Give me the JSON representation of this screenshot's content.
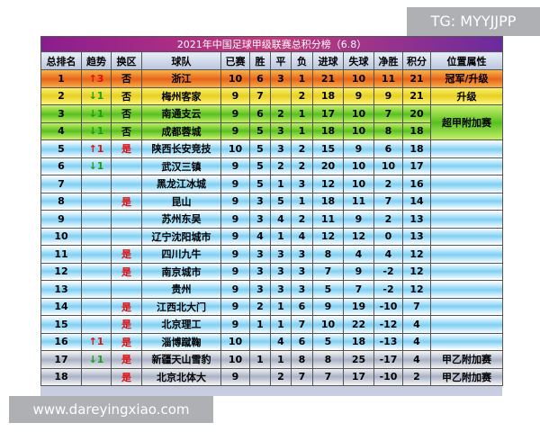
{
  "watermark_top": "TG: MYYJJPP",
  "watermark_bottom": "www.dareyingxiao.com",
  "table": {
    "title": "2021年中国足球甲级联赛总积分榜（6.8）",
    "header": [
      "总排名",
      "趋势",
      "换区",
      "球队",
      "已赛",
      "胜",
      "平",
      "负",
      "进球",
      "失球",
      "净胜",
      "积分",
      "位置属性"
    ],
    "rows": [
      {
        "rank": 1,
        "trend": "↑3",
        "zone": "否",
        "team": "浙江",
        "played": 10,
        "won": 6,
        "drawn": 3,
        "lost": 1,
        "gf": 21,
        "ga": 10,
        "gd": 11,
        "pts": 21,
        "position": "冠军/升级"
      },
      {
        "rank": 2,
        "trend": "↓1",
        "zone": "否",
        "team": "梅州客家",
        "played": 9,
        "won": 7,
        "lost": 2,
        "gf": 18,
        "ga": 9,
        "gd": 9,
        "pts": 21,
        "position": "升级"
      },
      {
        "rank": 3,
        "trend": "↓1",
        "zone": "否",
        "team": "南通支云",
        "played": 9,
        "won": 6,
        "drawn": 2,
        "lost": 1,
        "gf": 17,
        "ga": 10,
        "gd": 7,
        "pts": 20,
        "position": "超甲附加赛"
      },
      {
        "rank": 4,
        "trend": "↓1",
        "zone": "否",
        "team": "成都蓉城",
        "played": 9,
        "won": 5,
        "drawn": 3,
        "lost": 1,
        "gf": 18,
        "ga": 10,
        "gd": 8,
        "pts": 18
      },
      {
        "rank": 5,
        "trend": "↑1",
        "zone": "是",
        "team": "陕西长安竞技",
        "played": 10,
        "won": 5,
        "drawn": 3,
        "lost": 2,
        "gf": 15,
        "ga": 9,
        "gd": 6,
        "pts": 18
      },
      {
        "rank": 6,
        "trend": "↓1",
        "team": "武汉三镇",
        "played": 9,
        "won": 5,
        "drawn": 2,
        "lost": 2,
        "gf": 20,
        "ga": 10,
        "gd": 10,
        "pts": 17
      },
      {
        "rank": 7,
        "team": "黑龙江冰城",
        "played": 9,
        "won": 5,
        "drawn": 1,
        "lost": 3,
        "gf": 12,
        "ga": 10,
        "gd": 2,
        "pts": 16
      },
      {
        "rank": 8,
        "zone": "是",
        "team": "昆山",
        "played": 9,
        "won": 3,
        "drawn": 5,
        "lost": 1,
        "gf": 18,
        "ga": 11,
        "gd": 7,
        "pts": 14
      },
      {
        "rank": 9,
        "team": "苏州东吴",
        "played": 9,
        "won": 3,
        "drawn": 4,
        "lost": 2,
        "gf": 11,
        "ga": 9,
        "gd": 2,
        "pts": 13
      },
      {
        "rank": 10,
        "team": "辽宁沈阳城市",
        "played": 9,
        "won": 4,
        "drawn": 1,
        "lost": 4,
        "gf": 12,
        "ga": 12,
        "gd": 0,
        "pts": 13
      },
      {
        "rank": 11,
        "zone": "是",
        "team": "四川九牛",
        "played": 9,
        "won": 3,
        "drawn": 3,
        "lost": 3,
        "gf": 8,
        "ga": 4,
        "gd": 4,
        "pts": 12
      },
      {
        "rank": 12,
        "zone": "是",
        "team": "南京城市",
        "played": 9,
        "won": 3,
        "drawn": 3,
        "lost": 3,
        "gf": 7,
        "ga": 9,
        "gd": -2,
        "pts": 12
      },
      {
        "rank": 13,
        "team": "贵州",
        "played": 9,
        "won": 3,
        "drawn": 3,
        "lost": 3,
        "gf": 5,
        "ga": 7,
        "gd": -2,
        "pts": 12
      },
      {
        "rank": 14,
        "zone": "是",
        "team": "江西北大门",
        "played": 9,
        "won": 2,
        "drawn": 1,
        "lost": 6,
        "gf": 9,
        "ga": 19,
        "gd": -10,
        "pts": 7
      },
      {
        "rank": 15,
        "zone": "是",
        "team": "北京理工",
        "played": 9,
        "won": 1,
        "drawn": 1,
        "lost": 7,
        "gf": 10,
        "ga": 22,
        "gd": -12,
        "pts": 4
      },
      {
        "rank": 16,
        "trend": "↑1",
        "zone": "是",
        "team": "淄博蹴鞠",
        "played": 10,
        "drawn": 4,
        "lost": 6,
        "gf": 5,
        "ga": 18,
        "gd": -13,
        "pts": 4
      },
      {
        "rank": 17,
        "trend": "↓1",
        "zone": "是",
        "team": "新疆天山雪豹",
        "played": 10,
        "won": 1,
        "drawn": 1,
        "lost": 8,
        "gf": 8,
        "ga": 25,
        "gd": -17,
        "pts": 4,
        "position": "甲乙附加赛"
      },
      {
        "rank": 18,
        "zone": "是",
        "team": "北京北体大",
        "played": 9,
        "drawn": 2,
        "lost": 7,
        "gf": 7,
        "ga": 17,
        "gd": -10,
        "pts": 2,
        "position": "甲乙附加赛"
      }
    ]
  }
}
